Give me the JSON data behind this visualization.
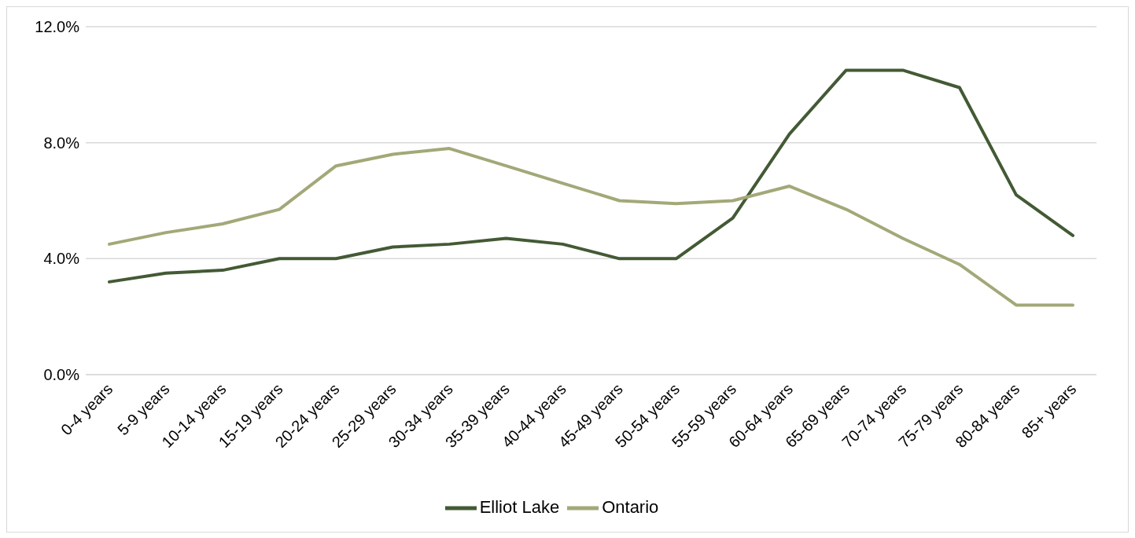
{
  "chart_data": {
    "type": "line",
    "categories": [
      "0-4 years",
      "5-9 years",
      "10-14 years",
      "15-19 years",
      "20-24 years",
      "25-29 years",
      "30-34 years",
      "35-39 years",
      "40-44 years",
      "45-49 years",
      "50-54 years",
      "55-59 years",
      "60-64 years",
      "65-69 years",
      "70-74 years",
      "75-79 years",
      "80-84 years",
      "85+ years"
    ],
    "series": [
      {
        "name": "Elliot Lake",
        "color": "#435a35",
        "values": [
          3.2,
          3.5,
          3.6,
          4.0,
          4.0,
          4.4,
          4.5,
          4.7,
          4.5,
          4.0,
          4.0,
          5.4,
          8.3,
          10.5,
          10.5,
          9.9,
          6.2,
          4.8
        ]
      },
      {
        "name": "Ontario",
        "color": "#a3a878",
        "values": [
          4.5,
          4.9,
          5.2,
          5.7,
          7.2,
          7.6,
          7.8,
          7.2,
          6.6,
          6.0,
          5.9,
          6.0,
          6.5,
          5.7,
          4.7,
          3.8,
          2.4,
          2.4
        ]
      }
    ],
    "ylim": [
      0,
      12
    ],
    "yticks": [
      {
        "value": 0,
        "label": "0.0%"
      },
      {
        "value": 4,
        "label": "4.0%"
      },
      {
        "value": 8,
        "label": "8.0%"
      },
      {
        "value": 12,
        "label": "12.0%"
      }
    ],
    "grid": "y",
    "legend": "bottom",
    "marker": "none",
    "line_style": "solid"
  }
}
